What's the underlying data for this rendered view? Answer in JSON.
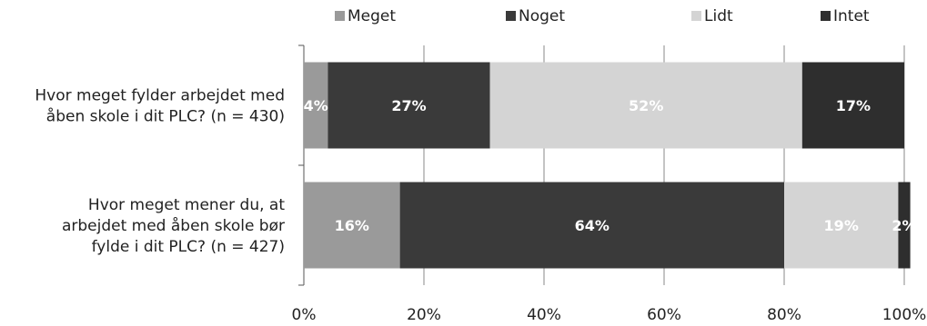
{
  "chart_data": {
    "type": "bar",
    "orientation": "horizontal",
    "stacked": true,
    "title": "",
    "xlabel": "",
    "ylabel": "",
    "xlim": [
      0,
      100
    ],
    "xticks": [
      "0%",
      "20%",
      "40%",
      "60%",
      "80%",
      "100%"
    ],
    "legend_position": "top",
    "grid": true,
    "categories": [
      [
        "Hvor meget fylder arbejdet med",
        "åben skole i dit PLC? (n = 430)"
      ],
      [
        "Hvor meget mener du, at",
        "arbejdet med åben skole bør",
        "fylde i dit PLC? (n = 427)"
      ]
    ],
    "series": [
      {
        "name": "Meget",
        "color": "#9a9a9a",
        "values": [
          4,
          16
        ],
        "labels": [
          "4%",
          "16%"
        ]
      },
      {
        "name": "Noget",
        "color": "#3a3a3a",
        "values": [
          27,
          64
        ],
        "labels": [
          "27%",
          "64%"
        ]
      },
      {
        "name": "Lidt",
        "color": "#d4d4d4",
        "values": [
          52,
          19
        ],
        "labels": [
          "52%",
          "19%"
        ]
      },
      {
        "name": "Intet",
        "color": "#2e2e2e",
        "values": [
          17,
          2
        ],
        "labels": [
          "17%",
          "2%"
        ]
      }
    ]
  }
}
